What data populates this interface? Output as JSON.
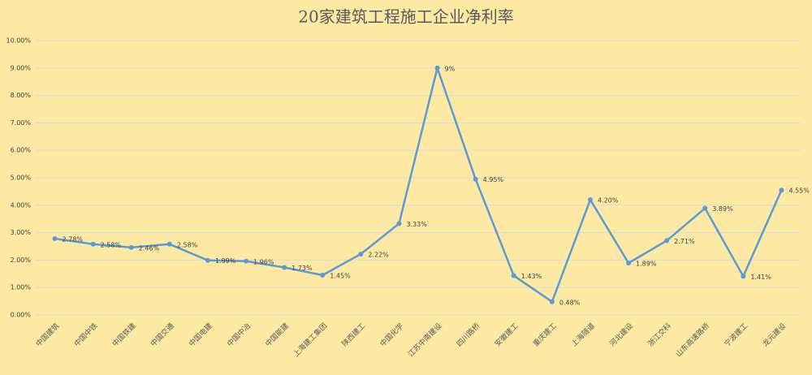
{
  "chart_data": {
    "type": "line",
    "title": "20家建筑工程施工企业净利率",
    "categories": [
      "中国建筑",
      "中国中铁",
      "中国铁建",
      "中国交通",
      "中国电建",
      "中国中冶",
      "中国能建",
      "上海建工集团",
      "陕西建工",
      "中国化学",
      "江苏中南建设",
      "四川路桥",
      "安徽建工",
      "重庆建工",
      "上海隧道",
      "河北建设",
      "浙江交科",
      "山东高速路桥",
      "宁波建工",
      "龙元建设"
    ],
    "series": [
      {
        "color": "#5b9bd5",
        "values": [
          2.78,
          2.58,
          2.46,
          2.58,
          1.99,
          1.96,
          1.73,
          1.45,
          2.22,
          3.33,
          9,
          4.95,
          1.43,
          0.48,
          4.2,
          1.89,
          2.71,
          3.89,
          1.41,
          4.55
        ],
        "value_labels": [
          "2.78%",
          "2.58%",
          "2.46%",
          "2.58%",
          "1.99%",
          "1.96%",
          "1.73%",
          "1.45%",
          "2.22%",
          "3.33%",
          "9%",
          "4.95%",
          "1.43%",
          "0.48%",
          "4.20%",
          "1.89%",
          "2.71%",
          "3.89%",
          "1.41%",
          "4.55%"
        ]
      }
    ],
    "ylim": [
      0,
      10
    ],
    "yticks": [
      {
        "value": 0,
        "label": "0.00%"
      },
      {
        "value": 1,
        "label": "1.00%"
      },
      {
        "value": 2,
        "label": "2.00%"
      },
      {
        "value": 3,
        "label": "3.00%"
      },
      {
        "value": 4,
        "label": "4.00%"
      },
      {
        "value": 5,
        "label": "5.00%"
      },
      {
        "value": 6,
        "label": "6.00%"
      },
      {
        "value": 7,
        "label": "7.00%"
      },
      {
        "value": 8,
        "label": "8.00%"
      },
      {
        "value": 9,
        "label": "9.00%"
      },
      {
        "value": 10,
        "label": "10.00%"
      }
    ],
    "grid": true
  }
}
